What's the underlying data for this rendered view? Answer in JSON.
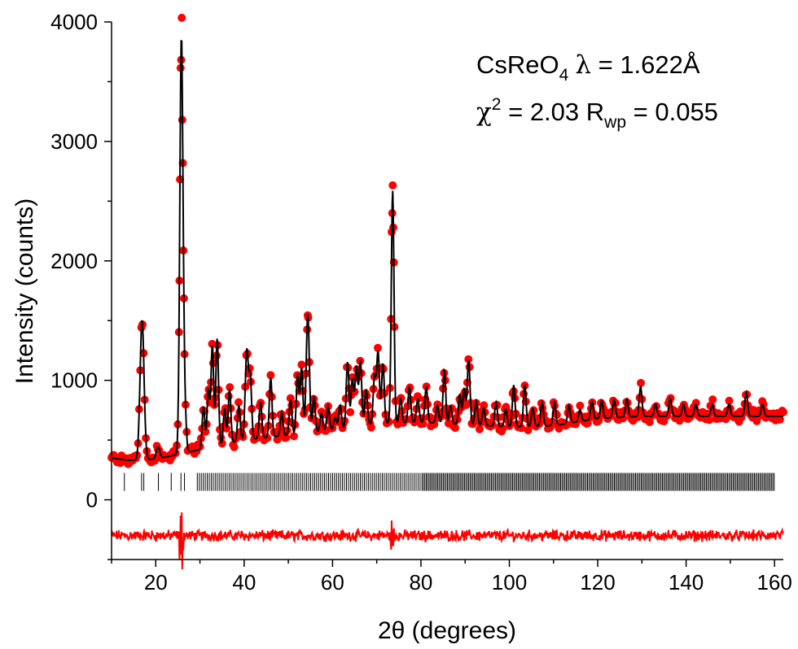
{
  "chart_data": {
    "type": "scatter",
    "xlabel": "2θ (degrees)",
    "ylabel": "Intensity (counts)",
    "xlim": [
      10,
      162
    ],
    "ylim": [
      -500,
      4000
    ],
    "x_ticks": [
      20,
      40,
      60,
      80,
      100,
      120,
      140,
      160
    ],
    "y_ticks": [
      0,
      1000,
      2000,
      3000,
      4000
    ],
    "grid": false,
    "legend": "none",
    "annotation": {
      "line1": {
        "formula_prefix": "CsReO",
        "formula_sub": "4",
        "lambda_symbol": "λ",
        "lambda_value": " = 1.622Å"
      },
      "line2": {
        "chi_symbol": "χ",
        "chi_sup": "2",
        "chi_text": " = 2.03 R",
        "rwp_sub": "wp",
        "rwp_text": " = 0.055"
      }
    },
    "series": [
      {
        "kind": "observed",
        "color": "#ff0000",
        "marker": "circle"
      },
      {
        "kind": "calculated",
        "color": "#000000",
        "marker": "line"
      },
      {
        "kind": "difference",
        "color": "#ff0000",
        "marker": "line",
        "offset": -300
      },
      {
        "kind": "reflection_ticks",
        "color": "#000000",
        "y_center": 150
      }
    ],
    "background": [
      [
        10,
        350
      ],
      [
        14,
        330
      ],
      [
        20,
        340
      ],
      [
        30,
        420
      ],
      [
        40,
        500
      ],
      [
        55,
        560
      ],
      [
        70,
        640
      ],
      [
        80,
        650
      ],
      [
        90,
        630
      ],
      [
        100,
        610
      ],
      [
        110,
        620
      ],
      [
        120,
        680
      ],
      [
        130,
        700
      ],
      [
        140,
        700
      ],
      [
        150,
        700
      ],
      [
        162,
        700
      ]
    ],
    "peaks": [
      [
        16.9,
        1170,
        0.45
      ],
      [
        20.5,
        100,
        0.4
      ],
      [
        25.8,
        3450,
        0.35
      ],
      [
        26.5,
        400,
        0.35
      ],
      [
        30.8,
        350,
        0.3
      ],
      [
        31.9,
        480,
        0.3
      ],
      [
        32.8,
        850,
        0.3
      ],
      [
        33.9,
        900,
        0.3
      ],
      [
        35.6,
        300,
        0.3
      ],
      [
        36.7,
        450,
        0.3
      ],
      [
        38.8,
        300,
        0.3
      ],
      [
        40.6,
        750,
        0.35
      ],
      [
        41.4,
        500,
        0.3
      ],
      [
        43.7,
        300,
        0.3
      ],
      [
        46.0,
        500,
        0.3
      ],
      [
        48.5,
        200,
        0.3
      ],
      [
        50.5,
        300,
        0.3
      ],
      [
        52.1,
        500,
        0.3
      ],
      [
        53.0,
        550,
        0.3
      ],
      [
        54.4,
        1000,
        0.35
      ],
      [
        55.8,
        300,
        0.3
      ],
      [
        57.5,
        150,
        0.3
      ],
      [
        59.0,
        200,
        0.3
      ],
      [
        60.6,
        100,
        0.3
      ],
      [
        61.7,
        200,
        0.3
      ],
      [
        63.4,
        550,
        0.3
      ],
      [
        64.5,
        400,
        0.3
      ],
      [
        65.4,
        500,
        0.3
      ],
      [
        66.3,
        550,
        0.3
      ],
      [
        67.6,
        300,
        0.3
      ],
      [
        69.5,
        400,
        0.3
      ],
      [
        70.3,
        600,
        0.3
      ],
      [
        71.4,
        500,
        0.3
      ],
      [
        73.6,
        1950,
        0.3
      ],
      [
        75.4,
        200,
        0.3
      ],
      [
        77.4,
        300,
        0.3
      ],
      [
        79.3,
        200,
        0.3
      ],
      [
        81.2,
        300,
        0.3
      ],
      [
        83.7,
        150,
        0.3
      ],
      [
        85.3,
        450,
        0.3
      ],
      [
        86.7,
        150,
        0.3
      ],
      [
        88.8,
        250,
        0.3
      ],
      [
        89.8,
        300,
        0.3
      ],
      [
        90.8,
        550,
        0.3
      ],
      [
        92.5,
        200,
        0.3
      ],
      [
        94.2,
        150,
        0.3
      ],
      [
        97.0,
        200,
        0.3
      ],
      [
        99.2,
        150,
        0.3
      ],
      [
        101.0,
        350,
        0.3
      ],
      [
        103.5,
        350,
        0.3
      ],
      [
        105.3,
        150,
        0.3
      ],
      [
        107.4,
        200,
        0.3
      ],
      [
        110.2,
        200,
        0.3
      ],
      [
        113.5,
        150,
        0.3
      ],
      [
        116.0,
        100,
        0.3
      ],
      [
        118.7,
        150,
        0.3
      ],
      [
        120.9,
        150,
        0.3
      ],
      [
        123.7,
        150,
        0.3
      ],
      [
        126.6,
        150,
        0.3
      ],
      [
        129.7,
        250,
        0.3
      ],
      [
        133.1,
        100,
        0.3
      ],
      [
        136.4,
        150,
        0.3
      ],
      [
        139.4,
        100,
        0.3
      ],
      [
        142.2,
        100,
        0.3
      ],
      [
        145.9,
        100,
        0.3
      ],
      [
        149.7,
        100,
        0.3
      ],
      [
        153.6,
        200,
        0.3
      ],
      [
        157.3,
        100,
        0.3
      ]
    ],
    "reflection_positions_first": [
      12.9,
      16.8,
      17.3,
      20.6,
      23.5,
      25.7,
      26.5
    ]
  }
}
